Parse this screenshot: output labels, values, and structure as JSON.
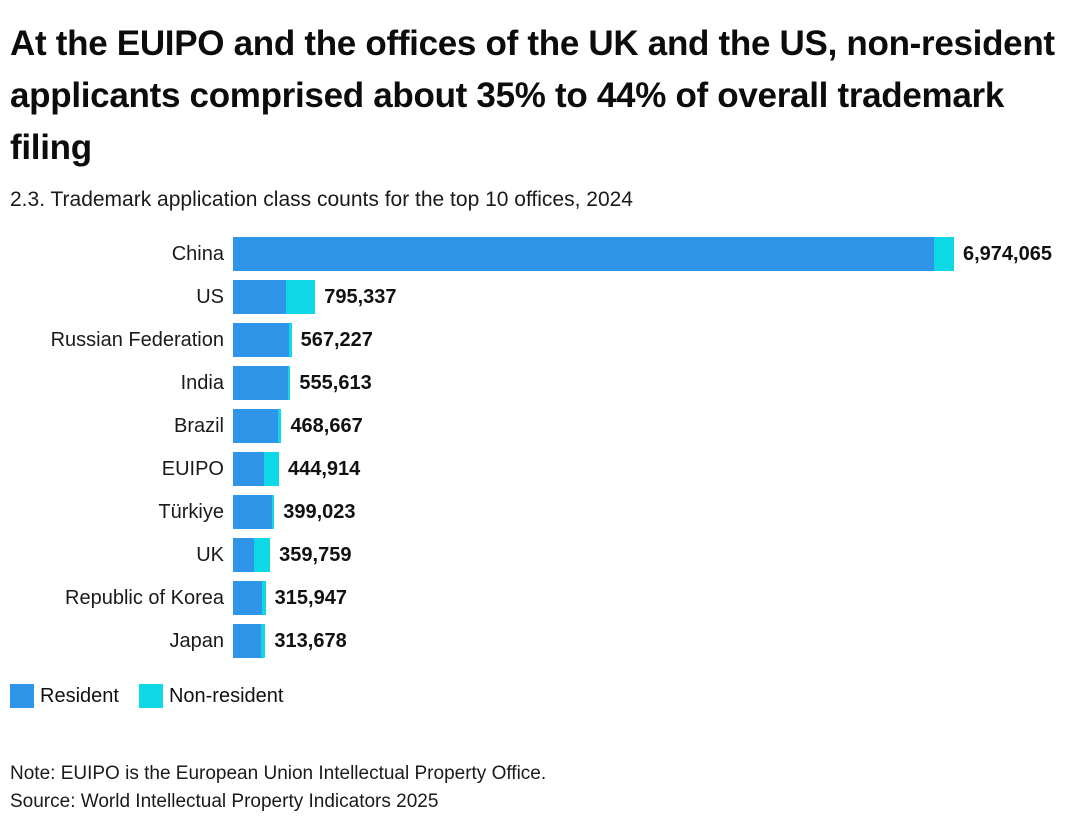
{
  "header": {
    "title": "At the EUIPO and the offices of the UK and the US, non-resident applicants comprised about 35% to 44% of overall trademark filing",
    "subtitle": "2.3. Trademark application class counts for the top 10 offices, 2024"
  },
  "colors": {
    "resident": "#2f95e8",
    "non_resident": "#0ed7e6",
    "title_text": "#0c0c0c",
    "body_text": "#1a1a1a"
  },
  "legend": {
    "resident": "Resident",
    "non_resident": "Non-resident"
  },
  "footer": {
    "note": "Note: EUIPO is the European Union Intellectual Property Office.",
    "source": "Source: World Intellectual Property Indicators 2025"
  },
  "chart_data": {
    "type": "bar",
    "orientation": "horizontal",
    "stacked": true,
    "grid": false,
    "legend_position": "bottom-left",
    "title": "2.3. Trademark application class counts for the top 10 offices, 2024",
    "xlabel": "",
    "ylabel": "",
    "xlim": [
      0,
      6974065
    ],
    "categories": [
      "China",
      "US",
      "Russian Federation",
      "India",
      "Brazil",
      "EUIPO",
      "Türkiye",
      "UK",
      "Republic of Korea",
      "Japan"
    ],
    "totals": [
      6974065,
      795337,
      567227,
      555613,
      468667,
      444914,
      399023,
      359759,
      315947,
      313678
    ],
    "total_labels": [
      "6,974,065",
      "795,337",
      "567,227",
      "555,613",
      "468,667",
      "444,914",
      "399,023",
      "359,759",
      "315,947",
      "313,678"
    ],
    "series": [
      {
        "name": "Resident",
        "color": "#2f95e8",
        "values": [
          6779065,
          509337,
          539227,
          535613,
          438667,
          299914,
          375023,
          204759,
          280947,
          271678
        ]
      },
      {
        "name": "Non-resident",
        "color": "#0ed7e6",
        "values": [
          195000,
          286000,
          28000,
          20000,
          30000,
          145000,
          24000,
          155000,
          35000,
          42000
        ]
      }
    ],
    "splits_estimated_from_bar_proportions": true,
    "value_labels_shown": "totals at bar ends"
  }
}
